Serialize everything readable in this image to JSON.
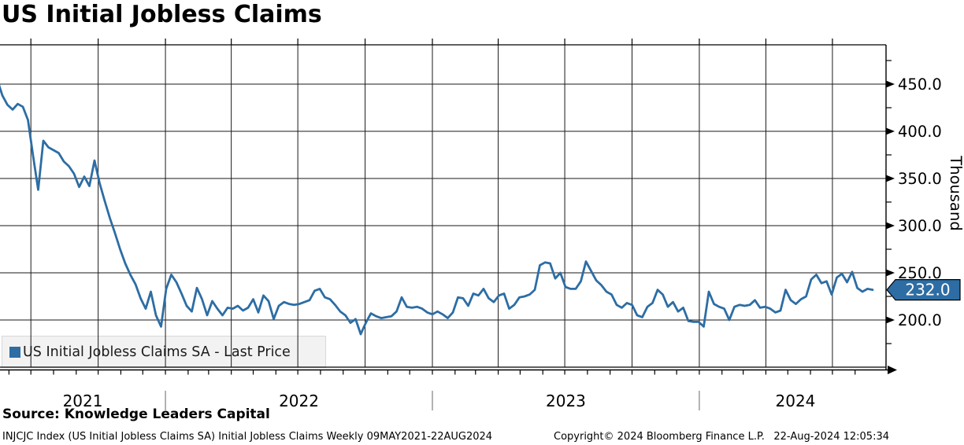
{
  "header": {
    "title": "US Initial Jobless Claims"
  },
  "legend": {
    "label": "US Initial Jobless Claims SA - Last Price"
  },
  "colors": {
    "line": "#2d6da4",
    "badge_fill": "#2d6da4",
    "badge_text": "#ffffff",
    "grid": "#1a1a1a",
    "axis": "#000000",
    "year_separator": "#808080",
    "legend_bg": "#f2f2f2"
  },
  "chart_data": {
    "type": "line",
    "title": "US Initial Jobless Claims",
    "series_name": "US Initial Jobless Claims SA",
    "frequency": "Weekly",
    "start_date": "2021-05-09",
    "end_date": "2024-08-22",
    "last_price": 232.0,
    "last_price_label": "232.0",
    "y_axis": {
      "title": "Thousand",
      "major_ticks": [
        450,
        400,
        350,
        300,
        250,
        200
      ],
      "minor_ticks": [
        475,
        425,
        375,
        325,
        275,
        225,
        175
      ],
      "ylim": [
        150,
        492
      ],
      "tick_format": "one_decimal"
    },
    "x_axis": {
      "year_labels": [
        "2021",
        "2022",
        "2023",
        "2024"
      ],
      "gridline_interval": "quarterly",
      "minor_tick_interval": "monthly"
    },
    "grid": true,
    "legend_position": "bottom-left",
    "values": [
      473,
      455,
      438,
      428,
      423,
      429,
      426,
      412,
      374,
      338,
      390,
      383,
      380,
      377,
      368,
      363,
      355,
      341,
      352,
      342,
      369,
      345,
      326,
      308,
      292,
      275,
      260,
      248,
      238,
      223,
      212,
      230,
      205,
      193,
      233,
      248,
      240,
      228,
      215,
      209,
      234,
      222,
      205,
      220,
      212,
      205,
      213,
      212,
      215,
      210,
      213,
      222,
      208,
      226,
      220,
      201,
      215,
      219,
      217,
      216,
      217,
      219,
      221,
      231,
      233,
      224,
      222,
      216,
      209,
      205,
      197,
      201,
      185,
      197,
      207,
      204,
      202,
      203,
      204,
      209,
      224,
      214,
      213,
      214,
      212,
      208,
      206,
      209,
      206,
      202,
      208,
      224,
      223,
      215,
      228,
      226,
      233,
      223,
      219,
      226,
      228,
      212,
      216,
      224,
      225,
      227,
      232,
      258,
      261,
      260,
      244,
      250,
      235,
      233,
      233,
      241,
      262,
      252,
      242,
      237,
      230,
      227,
      216,
      213,
      218,
      216,
      205,
      203,
      214,
      218,
      232,
      227,
      214,
      219,
      209,
      213,
      199,
      198,
      198,
      193,
      230,
      217,
      214,
      212,
      200,
      214,
      216,
      215,
      216,
      221,
      213,
      214,
      212,
      208,
      210,
      232,
      221,
      217,
      222,
      225,
      243,
      248,
      239,
      241,
      227,
      245,
      249,
      240,
      251,
      234,
      230,
      233,
      232
    ]
  },
  "footer": {
    "source": "Source: Knowledge Leaders Capital",
    "left": "INJCJC Index (US Initial Jobless Claims SA) Initial Jobless Claims  Weekly 09MAY2021-22AUG2024",
    "center": "Copyright© 2024 Bloomberg Finance L.P.",
    "right": "22-Aug-2024 12:05:34"
  }
}
